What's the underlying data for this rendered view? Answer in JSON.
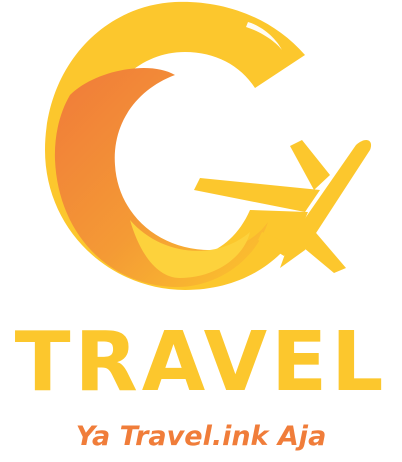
{
  "brand": {
    "name": "TRAVEL",
    "tagline": "Ya Travel.ink Aja",
    "logo_icon": "g-airplane-logo-icon"
  },
  "colors": {
    "primary_yellow": "#fcc72d",
    "accent_orange": "#f07d3a",
    "highlight": "#ffffff",
    "background": "#ffffff"
  }
}
